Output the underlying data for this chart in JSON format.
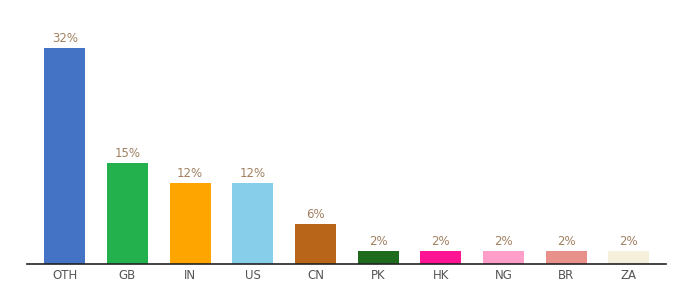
{
  "categories": [
    "OTH",
    "GB",
    "IN",
    "US",
    "CN",
    "PK",
    "HK",
    "NG",
    "BR",
    "ZA"
  ],
  "values": [
    32,
    15,
    12,
    12,
    6,
    2,
    2,
    2,
    2,
    2
  ],
  "bar_colors": [
    "#4472c4",
    "#22b14c",
    "#ffa500",
    "#87ceeb",
    "#b8651a",
    "#1e6b1e",
    "#ff1493",
    "#ff9ec8",
    "#e8908a",
    "#f5f0dc"
  ],
  "ylim": [
    0,
    36
  ],
  "label_color": "#a08060",
  "background_color": "#ffffff",
  "bar_width": 0.65
}
